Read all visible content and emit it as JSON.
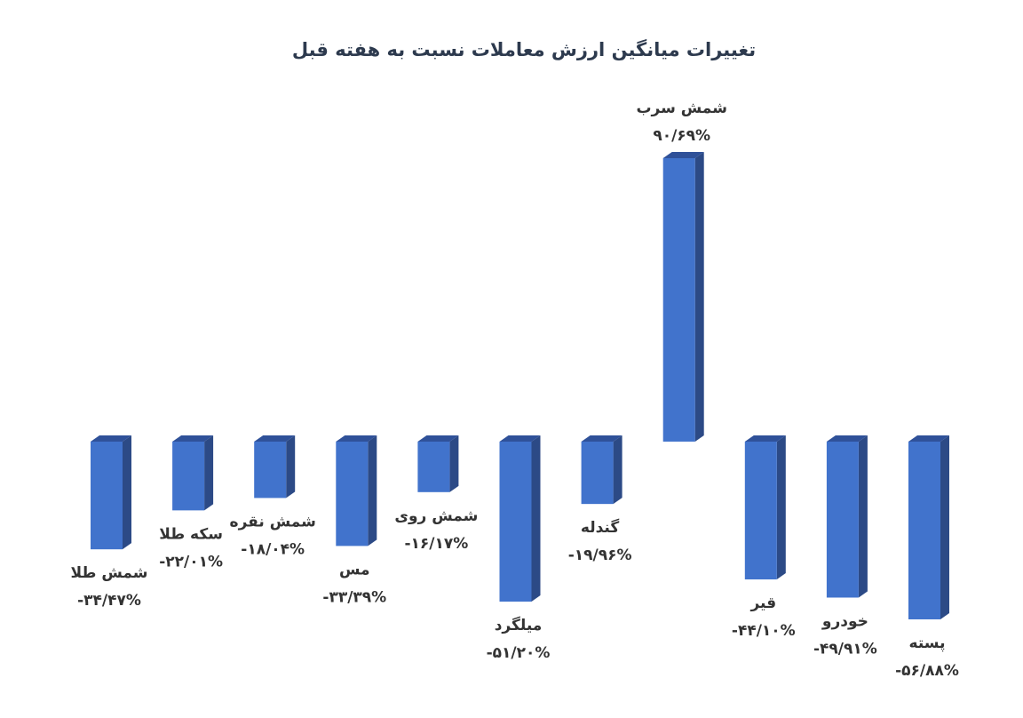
{
  "chart_data": {
    "type": "bar3d",
    "title": "تغییرات میانگین ارزش معاملات نسبت به هفته قبل",
    "categories": [
      "شمش طلا",
      "سکه طلا",
      "شمش نقره",
      "مس",
      "شمش روی",
      "میلگرد",
      "گندله",
      "شمش سرب",
      "قیر",
      "خودرو",
      "پسته"
    ],
    "values": [
      -34.47,
      -22.01,
      -18.04,
      -33.39,
      -16.17,
      -51.2,
      -19.96,
      90.69,
      -44.1,
      -49.91,
      -56.88
    ],
    "value_labels": [
      "-۳۴/۴۷%",
      "-۲۲/۰۱%",
      "-۱۸/۰۴%",
      "-۳۳/۳۹%",
      "-۱۶/۱۷%",
      "-۵۱/۲۰%",
      "-۱۹/۹۶%",
      "۹۰/۶۹%",
      "-۴۴/۱۰%",
      "-۴۹/۹۱%",
      "-۵۶/۸۸%"
    ],
    "color": "#4173cc"
  }
}
